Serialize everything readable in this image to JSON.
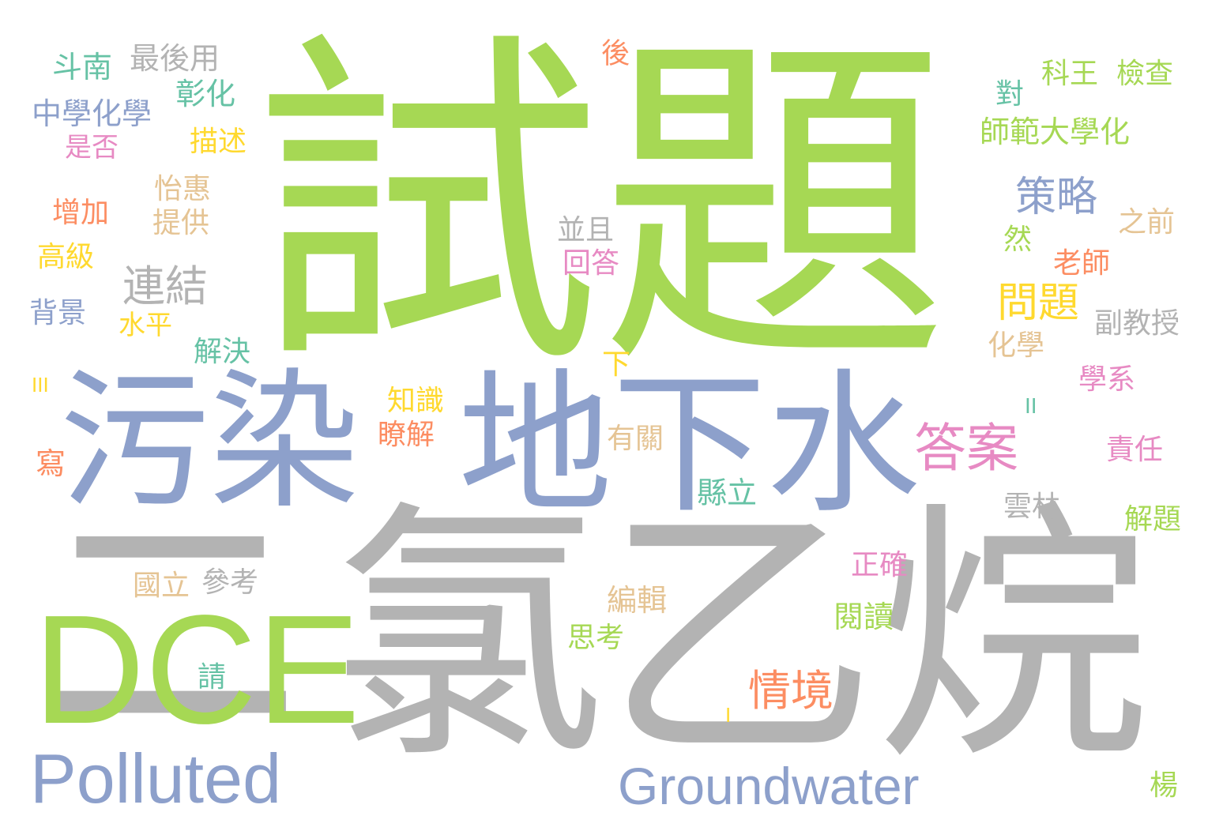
{
  "palette": {
    "green": "#a6d854",
    "gray": "#b3b3b3",
    "blue": "#8da0cb",
    "pink": "#e78ac3",
    "orange": "#fc8d62",
    "yellow": "#ffd92f",
    "teal": "#66c2a5",
    "tan": "#e5c494"
  },
  "words": [
    {
      "text": "試題",
      "color": "green"
    },
    {
      "text": "二",
      "color": "gray"
    },
    {
      "text": "氯乙烷",
      "color": "gray"
    },
    {
      "text": "污染",
      "color": "blue"
    },
    {
      "text": "地下水",
      "color": "blue"
    },
    {
      "text": "DCE",
      "color": "green"
    },
    {
      "text": "Polluted",
      "color": "blue"
    },
    {
      "text": "Groundwater",
      "color": "blue"
    },
    {
      "text": "答案",
      "color": "pink"
    },
    {
      "text": "策略",
      "color": "blue"
    },
    {
      "text": "問題",
      "color": "yellow"
    },
    {
      "text": "情境",
      "color": "orange"
    },
    {
      "text": "連結",
      "color": "gray"
    },
    {
      "text": "斗南",
      "color": "teal"
    },
    {
      "text": "最後用",
      "color": "gray"
    },
    {
      "text": "後",
      "color": "orange"
    },
    {
      "text": "中學化學",
      "color": "blue"
    },
    {
      "text": "彰化",
      "color": "teal"
    },
    {
      "text": "是否",
      "color": "pink"
    },
    {
      "text": "描述",
      "color": "yellow"
    },
    {
      "text": "怡惠",
      "color": "tan"
    },
    {
      "text": "增加",
      "color": "orange"
    },
    {
      "text": "提供",
      "color": "tan"
    },
    {
      "text": "高級",
      "color": "yellow"
    },
    {
      "text": "背景",
      "color": "blue"
    },
    {
      "text": "水平",
      "color": "yellow"
    },
    {
      "text": "解決",
      "color": "teal"
    },
    {
      "text": "III",
      "color": "yellow"
    },
    {
      "text": "寫",
      "color": "orange"
    },
    {
      "text": "科王",
      "color": "green"
    },
    {
      "text": "檢查",
      "color": "green"
    },
    {
      "text": "對",
      "color": "teal"
    },
    {
      "text": "師範大學化",
      "color": "green"
    },
    {
      "text": "之前",
      "color": "tan"
    },
    {
      "text": "然",
      "color": "green"
    },
    {
      "text": "老師",
      "color": "orange"
    },
    {
      "text": "副教授",
      "color": "gray"
    },
    {
      "text": "化學",
      "color": "tan"
    },
    {
      "text": "學系",
      "color": "pink"
    },
    {
      "text": "II",
      "color": "teal"
    },
    {
      "text": "責任",
      "color": "pink"
    },
    {
      "text": "雲林",
      "color": "gray"
    },
    {
      "text": "解題",
      "color": "green"
    },
    {
      "text": "並且",
      "color": "gray"
    },
    {
      "text": "回答",
      "color": "pink"
    },
    {
      "text": "下",
      "color": "yellow"
    },
    {
      "text": "知識",
      "color": "yellow"
    },
    {
      "text": "瞭解",
      "color": "orange"
    },
    {
      "text": "有關",
      "color": "tan"
    },
    {
      "text": "縣立",
      "color": "teal"
    },
    {
      "text": "正確",
      "color": "pink"
    },
    {
      "text": "國立",
      "color": "tan"
    },
    {
      "text": "參考",
      "color": "gray"
    },
    {
      "text": "編輯",
      "color": "tan"
    },
    {
      "text": "閱讀",
      "color": "green"
    },
    {
      "text": "思考",
      "color": "green"
    },
    {
      "text": "請",
      "color": "teal"
    },
    {
      "text": "I",
      "color": "yellow"
    },
    {
      "text": "楊",
      "color": "green"
    }
  ]
}
